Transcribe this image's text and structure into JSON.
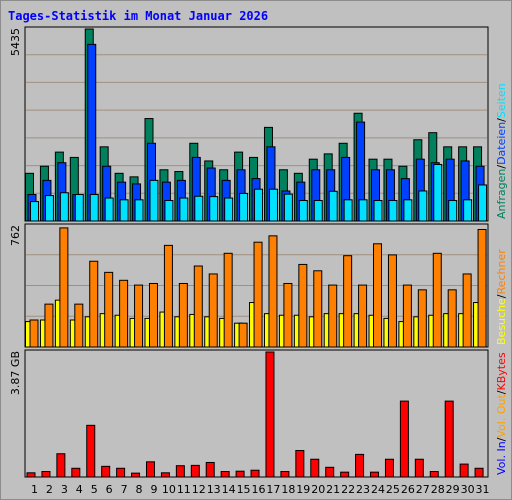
{
  "title": "Tages-Statistik im Monat Januar 2026",
  "colors": {
    "anfragen": "#00805c",
    "dateien": "#0040ff",
    "seiten": "#00e0ff",
    "besuche": "#ffff00",
    "rechner": "#ff8000",
    "kbytes": "#ff0000",
    "weekend": "#00805c",
    "weekday": "#000000",
    "separator": "#000000",
    "vol_in": "#0000ff",
    "vol_out": "#ffa000"
  },
  "chart_data": [
    {
      "type": "bar",
      "categories": [
        "1",
        "2",
        "3",
        "4",
        "5",
        "6",
        "7",
        "8",
        "9",
        "10",
        "11",
        "12",
        "13",
        "14",
        "15",
        "16",
        "17",
        "18",
        "19",
        "20",
        "21",
        "22",
        "23",
        "24",
        "25",
        "26",
        "27",
        "28",
        "29",
        "30",
        "31"
      ],
      "weekend_categories": [
        "3",
        "4",
        "10",
        "11",
        "17",
        "18",
        "24",
        "25",
        "31"
      ],
      "ymax_label": "5435",
      "ylim": [
        0,
        5435
      ],
      "series": [
        {
          "name": "Anfragen",
          "values": [
            1350,
            1550,
            1950,
            1800,
            5435,
            2100,
            1350,
            1250,
            2900,
            1450,
            1400,
            2200,
            1700,
            1450,
            1950,
            1800,
            2650,
            1450,
            1350,
            1750,
            1900,
            2200,
            3050,
            1750,
            1750,
            1550,
            2300,
            2500,
            2100,
            2100,
            2100
          ]
        },
        {
          "name": "Dateien",
          "values": [
            750,
            1150,
            1650,
            750,
            5000,
            1550,
            1100,
            1050,
            2200,
            1100,
            1150,
            1800,
            1500,
            1150,
            1450,
            1200,
            2100,
            850,
            1100,
            1450,
            1450,
            1800,
            2800,
            1450,
            1450,
            1200,
            1750,
            1650,
            1750,
            1700,
            1550
          ]
        },
        {
          "name": "Seiten",
          "values": [
            550,
            720,
            800,
            750,
            750,
            650,
            600,
            600,
            1150,
            580,
            650,
            700,
            690,
            650,
            780,
            900,
            900,
            760,
            580,
            580,
            840,
            600,
            600,
            580,
            580,
            600,
            850,
            1600,
            580,
            600,
            1020
          ]
        }
      ],
      "legend": [
        "Anfragen",
        "/",
        "Dateien",
        "/",
        "Seiten"
      ]
    },
    {
      "type": "bar",
      "ymax_label": "762",
      "ylim": [
        0,
        762
      ],
      "series": [
        {
          "name": "Besuche",
          "values": [
            160,
            170,
            295,
            170,
            190,
            210,
            200,
            180,
            180,
            220,
            190,
            205,
            190,
            180,
            150,
            280,
            210,
            200,
            200,
            190,
            210,
            210,
            210,
            200,
            180,
            160,
            190,
            200,
            210,
            210,
            280
          ]
        },
        {
          "name": "Rechner",
          "values": [
            170,
            270,
            750,
            270,
            540,
            470,
            420,
            390,
            400,
            640,
            400,
            510,
            460,
            590,
            150,
            660,
            700,
            400,
            520,
            480,
            390,
            575,
            390,
            650,
            580,
            390,
            360,
            590,
            360,
            460,
            740
          ]
        }
      ],
      "legend": [
        "Besuche",
        "/",
        "Rechner"
      ]
    },
    {
      "type": "bar",
      "ymax_label": "3.87 GB",
      "ylim": [
        0,
        3.87
      ],
      "series": [
        {
          "name": "KBytes",
          "values": [
            0.13,
            0.17,
            0.72,
            0.27,
            1.6,
            0.33,
            0.27,
            0.12,
            0.47,
            0.13,
            0.35,
            0.36,
            0.45,
            0.17,
            0.18,
            0.21,
            3.87,
            0.17,
            0.82,
            0.55,
            0.3,
            0.15,
            0.7,
            0.15,
            0.55,
            2.35,
            0.55,
            0.17,
            2.35,
            0.4,
            0.27
          ]
        }
      ],
      "legend": [
        "Vol. In",
        "/",
        "Vol. Out",
        "/",
        "KBytes"
      ]
    }
  ]
}
